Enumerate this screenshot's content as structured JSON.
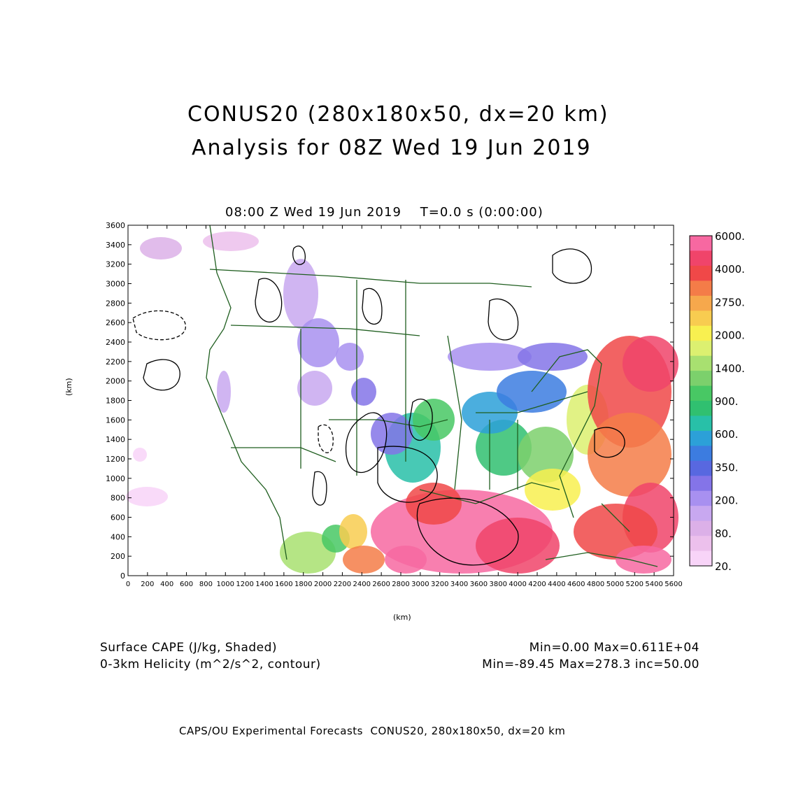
{
  "header": {
    "title_line1": "CONUS20 (280x180x50, dx=20 km)",
    "title_line2": "Analysis for 08Z Wed 19 Jun 2019"
  },
  "plot": {
    "time_label": "08:00 Z Wed 19 Jun 2019    T=0.0 s (0:00:00)",
    "xlabel": "(km)",
    "ylabel": "(km)"
  },
  "chart_data": {
    "type": "heatmap",
    "title": "08:00 Z Wed 19 Jun 2019    T=0.0 s (0:00:00)",
    "xlabel": "(km)",
    "ylabel": "(km)",
    "xlim": [
      0,
      5600
    ],
    "ylim": [
      0,
      3600
    ],
    "x_ticks": [
      0,
      200,
      400,
      600,
      800,
      1000,
      1200,
      1400,
      1600,
      1800,
      2000,
      2200,
      2400,
      2600,
      2800,
      3000,
      3200,
      3400,
      3600,
      3800,
      4000,
      4200,
      4400,
      4600,
      4800,
      5000,
      5200,
      5400,
      5600
    ],
    "y_ticks": [
      0,
      200,
      400,
      600,
      800,
      1000,
      1200,
      1400,
      1600,
      1800,
      2000,
      2200,
      2400,
      2600,
      2800,
      3000,
      3200,
      3400,
      3600
    ],
    "colorbar": {
      "labels": [
        "6000.",
        "4000.",
        "2750.",
        "2000.",
        "1400.",
        "900.",
        "600.",
        "350.",
        "200.",
        "80.",
        "20."
      ],
      "colors": [
        "#f768a1",
        "#f0446a",
        "#f04848",
        "#f47c48",
        "#f6a84c",
        "#f8cc50",
        "#f8f050",
        "#dcf070",
        "#a8e070",
        "#7cd06c",
        "#48c864",
        "#30c070",
        "#28c0a8",
        "#2ca0d8",
        "#3c7ce0",
        "#5868e0",
        "#8474e8",
        "#a890f0",
        "#c8a8f0",
        "#dcb0e8",
        "#ecc0ec",
        "#f8d4f8"
      ]
    },
    "fields": [
      {
        "name": "Surface CAPE (J/kg, Shaded)",
        "min": "0.00",
        "max": "0.611E+04"
      },
      {
        "name": "0-3km Helicity (m^2/s^2, contour)",
        "min": "-89.45",
        "max": "278.3",
        "inc": "50.00"
      }
    ]
  },
  "legend": {
    "field1_label": "Surface CAPE (J/kg, Shaded)",
    "field1_stats": "Min=0.00 Max=0.611E+04",
    "field2_label": "0-3km Helicity (m^2/s^2, contour)",
    "field2_stats": "Min=-89.45 Max=278.3 inc=50.00"
  },
  "footer": {
    "text": "CAPS/OU Experimental Forecasts  CONUS20, 280x180x50, dx=20 km"
  }
}
